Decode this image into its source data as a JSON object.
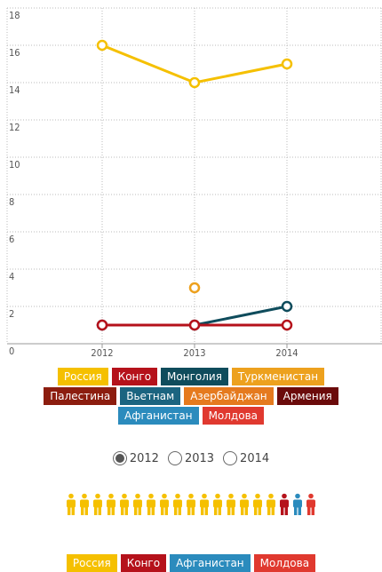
{
  "chart_data": {
    "type": "line",
    "categories": [
      "2012",
      "2013",
      "2014"
    ],
    "series": [
      {
        "name": "Россия",
        "color": "#f5c000",
        "values": [
          16,
          14,
          15
        ]
      },
      {
        "name": "Конго",
        "color": "#b5121b",
        "values": [
          1,
          1,
          1
        ]
      },
      {
        "name": "Монголия",
        "color": "#0f4c5c",
        "values": [
          null,
          1,
          2
        ]
      },
      {
        "name": "Туркменистан",
        "color": "#eda11e",
        "values": [
          null,
          3,
          null
        ]
      },
      {
        "name": "Палестина",
        "color": "#8c1d0f",
        "values": [
          null,
          null,
          null
        ]
      },
      {
        "name": "Вьетнам",
        "color": "#1b6480",
        "values": [
          null,
          null,
          null
        ]
      },
      {
        "name": "Азербайджан",
        "color": "#e57a1e",
        "values": [
          null,
          null,
          null
        ]
      },
      {
        "name": "Армения",
        "color": "#6b0b0b",
        "values": [
          null,
          null,
          null
        ]
      },
      {
        "name": "Афганистан",
        "color": "#2b8bbd",
        "values": [
          1,
          null,
          null
        ]
      },
      {
        "name": "Молдова",
        "color": "#e0392f",
        "values": [
          1,
          null,
          null
        ]
      }
    ],
    "ylim": [
      0,
      18
    ],
    "yticks": [
      0,
      2,
      4,
      6,
      8,
      10,
      12,
      14,
      16,
      18
    ],
    "grid": true,
    "selected_index": 0
  }
}
